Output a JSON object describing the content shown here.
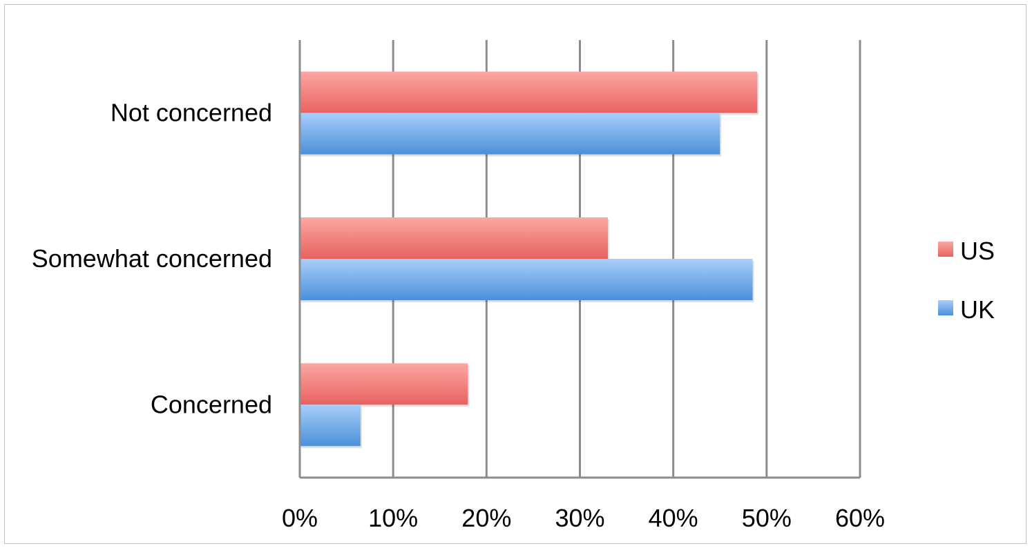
{
  "chart_data": {
    "type": "bar",
    "orientation": "horizontal",
    "categories": [
      "Not concerned",
      "Somewhat concerned",
      "Concerned"
    ],
    "series": [
      {
        "name": "US",
        "values": [
          49,
          33,
          18
        ],
        "color": "#e8625f",
        "color_light": "#fba7a3"
      },
      {
        "name": "UK",
        "values": [
          45,
          48.5,
          6.5
        ],
        "color": "#4a90d9",
        "color_light": "#a9cefa"
      }
    ],
    "xlim": [
      0,
      60
    ],
    "xticks": [
      0,
      10,
      20,
      30,
      40,
      50,
      60
    ],
    "tick_suffix": "%",
    "grid": true,
    "legend_position": "right"
  }
}
